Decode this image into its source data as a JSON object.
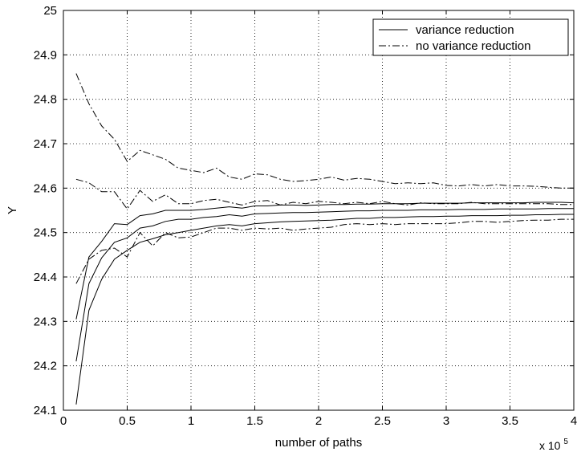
{
  "chart_data": {
    "type": "line",
    "title": "",
    "xlabel": "number of paths",
    "ylabel": "Y",
    "x_multiplier_label": "x 10",
    "x_multiplier_exponent": "5",
    "xlim": [
      0,
      4
    ],
    "ylim": [
      24.1,
      25
    ],
    "xticks": [
      0,
      0.5,
      1,
      1.5,
      2,
      2.5,
      3,
      3.5,
      4
    ],
    "xtick_labels": [
      "0",
      "0.5",
      "1",
      "1.5",
      "2",
      "2.5",
      "3",
      "3.5",
      "4"
    ],
    "yticks": [
      24.1,
      24.2,
      24.3,
      24.4,
      24.5,
      24.6,
      24.7,
      24.8,
      24.9,
      25
    ],
    "ytick_labels": [
      "24.1",
      "24.2",
      "24.3",
      "24.4",
      "24.5",
      "24.6",
      "24.7",
      "24.8",
      "24.9",
      "25"
    ],
    "grid": true,
    "legend_position": "top-right",
    "legend": [
      {
        "label": "variance reduction",
        "style": "solid"
      },
      {
        "label": "no variance reduction",
        "style": "dashdot"
      }
    ],
    "x": [
      0.1,
      0.2,
      0.3,
      0.4,
      0.5,
      0.6,
      0.7,
      0.8,
      0.9,
      1.0,
      1.1,
      1.2,
      1.3,
      1.4,
      1.5,
      1.6,
      1.7,
      1.8,
      1.9,
      2.0,
      2.1,
      2.2,
      2.3,
      2.4,
      2.5,
      2.6,
      2.7,
      2.8,
      2.9,
      3.0,
      3.1,
      3.2,
      3.3,
      3.4,
      3.5,
      3.6,
      3.7,
      3.8,
      3.9,
      4.0
    ],
    "series": [
      {
        "style": "solid",
        "values": [
          24.305,
          24.445,
          24.48,
          24.52,
          24.518,
          24.538,
          24.542,
          24.55,
          24.55,
          24.55,
          24.552,
          24.555,
          24.558,
          24.555,
          24.56,
          24.56,
          24.562,
          24.562,
          24.561,
          24.562,
          24.563,
          24.563,
          24.564,
          24.564,
          24.565,
          24.565,
          24.565,
          24.566,
          24.566,
          24.566,
          24.566,
          24.567,
          24.567,
          24.567,
          24.567,
          24.567,
          24.568,
          24.568,
          24.568,
          24.567
        ]
      },
      {
        "style": "solid",
        "values": [
          24.21,
          24.385,
          24.443,
          24.478,
          24.488,
          24.51,
          24.515,
          24.525,
          24.53,
          24.53,
          24.534,
          24.536,
          24.54,
          24.537,
          24.542,
          24.543,
          24.544,
          24.545,
          24.545,
          24.546,
          24.547,
          24.548,
          24.549,
          24.549,
          24.55,
          24.55,
          24.55,
          24.551,
          24.551,
          24.551,
          24.552,
          24.552,
          24.552,
          24.553,
          24.553,
          24.553,
          24.553,
          24.554,
          24.554,
          24.554
        ]
      },
      {
        "style": "solid",
        "values": [
          24.113,
          24.325,
          24.395,
          24.44,
          24.46,
          24.478,
          24.486,
          24.495,
          24.5,
          24.505,
          24.51,
          24.515,
          24.518,
          24.515,
          24.52,
          24.522,
          24.524,
          24.525,
          24.526,
          24.527,
          24.528,
          24.53,
          24.532,
          24.532,
          24.534,
          24.534,
          24.535,
          24.536,
          24.536,
          24.537,
          24.537,
          24.538,
          24.538,
          24.538,
          24.539,
          24.539,
          24.54,
          24.54,
          24.541,
          24.541
        ]
      },
      {
        "style": "dashdot",
        "values": [
          24.858,
          24.79,
          24.74,
          24.71,
          24.66,
          24.685,
          24.675,
          24.665,
          24.645,
          24.64,
          24.635,
          24.645,
          24.625,
          24.62,
          24.632,
          24.63,
          24.62,
          24.615,
          24.617,
          24.62,
          24.625,
          24.618,
          24.622,
          24.62,
          24.615,
          24.61,
          24.612,
          24.61,
          24.612,
          24.606,
          24.605,
          24.608,
          24.605,
          24.608,
          24.605,
          24.605,
          24.604,
          24.602,
          24.6,
          24.6
        ]
      },
      {
        "style": "dashdot",
        "values": [
          24.62,
          24.612,
          24.592,
          24.592,
          24.553,
          24.595,
          24.57,
          24.585,
          24.565,
          24.565,
          24.572,
          24.575,
          24.568,
          24.562,
          24.57,
          24.572,
          24.562,
          24.568,
          24.565,
          24.57,
          24.568,
          24.565,
          24.568,
          24.565,
          24.57,
          24.565,
          24.562,
          24.567,
          24.565,
          24.565,
          24.565,
          24.568,
          24.565,
          24.565,
          24.565,
          24.565,
          24.565,
          24.565,
          24.563,
          24.563
        ]
      },
      {
        "style": "dashdot",
        "values": [
          24.385,
          24.44,
          24.46,
          24.465,
          24.445,
          24.5,
          24.47,
          24.5,
          24.488,
          24.49,
          24.5,
          24.51,
          24.51,
          24.505,
          24.51,
          24.508,
          24.51,
          24.505,
          24.508,
          24.51,
          24.512,
          24.518,
          24.52,
          24.518,
          24.52,
          24.518,
          24.52,
          24.52,
          24.52,
          24.52,
          24.522,
          24.525,
          24.525,
          24.523,
          24.525,
          24.527,
          24.528,
          24.528,
          24.53,
          24.53
        ]
      }
    ]
  }
}
